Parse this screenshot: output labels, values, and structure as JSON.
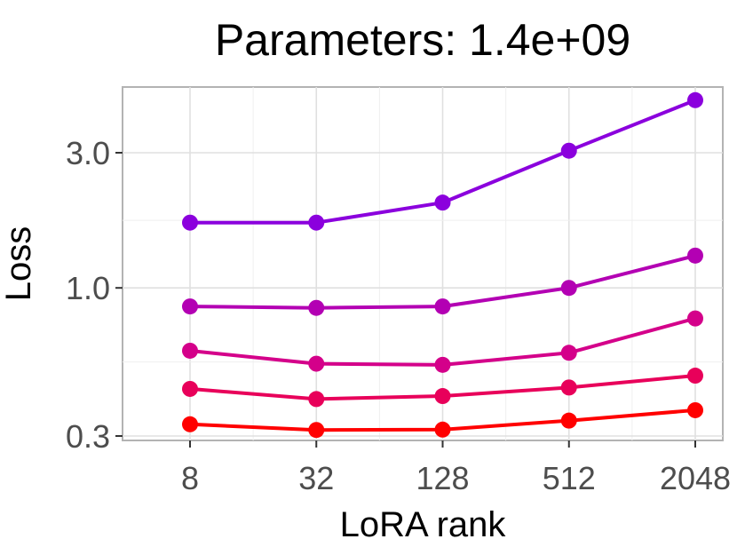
{
  "chart_data": {
    "type": "line",
    "title": "Parameters: 1.4e+09",
    "xlabel": "LoRA rank",
    "ylabel": "Loss",
    "x_scale": "log2",
    "y_scale": "log",
    "x": [
      8,
      32,
      128,
      512,
      2048
    ],
    "x_tick_labels": [
      "8",
      "32",
      "128",
      "512",
      "2048"
    ],
    "y_ticks": [
      0.3,
      1.0,
      3.0
    ],
    "y_tick_labels": [
      "0.3",
      "1.0",
      "3.0"
    ],
    "ylim": [
      0.29,
      4.6
    ],
    "grid": true,
    "series": [
      {
        "color": "#8b00dd",
        "values": [
          1.7,
          1.7,
          2.0,
          3.05,
          4.6
        ]
      },
      {
        "color": "#b300b3",
        "values": [
          0.86,
          0.85,
          0.86,
          1.0,
          1.3
        ]
      },
      {
        "color": "#d4008a",
        "values": [
          0.6,
          0.54,
          0.535,
          0.59,
          0.78
        ]
      },
      {
        "color": "#e8005a",
        "values": [
          0.44,
          0.405,
          0.415,
          0.445,
          0.49
        ]
      },
      {
        "color": "#ff0000",
        "values": [
          0.33,
          0.315,
          0.316,
          0.34,
          0.37
        ]
      }
    ]
  }
}
